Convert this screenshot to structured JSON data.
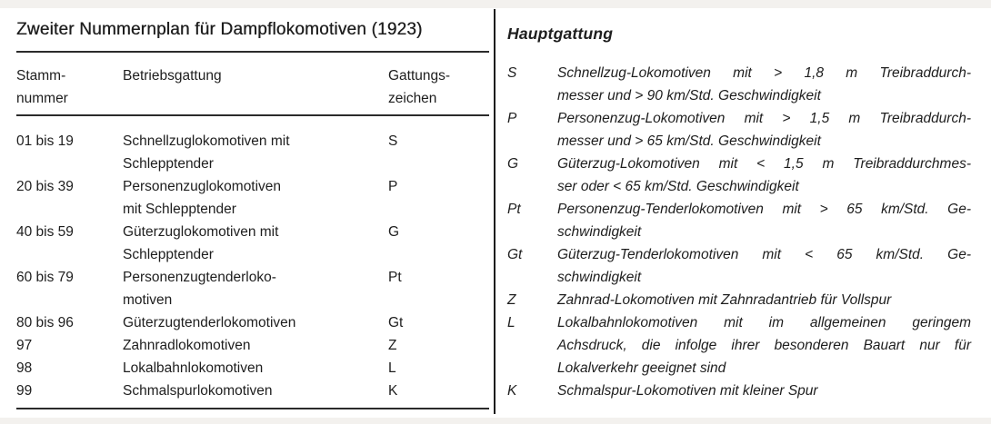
{
  "left": {
    "title": "Zweiter Nummernplan für Dampflokomotiven (1923)",
    "header": {
      "stammnummer": [
        "Stamm-",
        "nummer"
      ],
      "betriebsgattung": "Betriebsgattung",
      "gattungszeichen": [
        "Gattungs-",
        "zeichen"
      ]
    },
    "rows": [
      {
        "stammnummer": "01 bis 19",
        "betriebsgattung": [
          "Schnellzuglokomotiven mit",
          "Schlepptender"
        ],
        "gattungszeichen": "S"
      },
      {
        "stammnummer": "20 bis 39",
        "betriebsgattung": [
          "Personenzuglokomotiven",
          "mit Schlepptender"
        ],
        "gattungszeichen": "P"
      },
      {
        "stammnummer": "40 bis 59",
        "betriebsgattung": [
          "Güterzuglokomotiven mit",
          "Schlepptender"
        ],
        "gattungszeichen": "G"
      },
      {
        "stammnummer": "60 bis 79",
        "betriebsgattung": [
          "Personenzugtenderloko-",
          "motiven"
        ],
        "gattungszeichen": "Pt"
      },
      {
        "stammnummer": "80 bis 96",
        "betriebsgattung": [
          "Güterzugtenderlokomotiven"
        ],
        "gattungszeichen": "Gt"
      },
      {
        "stammnummer": "97",
        "betriebsgattung": [
          "Zahnradlokomotiven"
        ],
        "gattungszeichen": "Z"
      },
      {
        "stammnummer": "98",
        "betriebsgattung": [
          "Lokalbahnlokomotiven"
        ],
        "gattungszeichen": "L"
      },
      {
        "stammnummer": "99",
        "betriebsgattung": [
          "Schmalspurlokomotiven"
        ],
        "gattungszeichen": "K"
      }
    ]
  },
  "right": {
    "heading": "Hauptgattung",
    "entries": [
      {
        "code": "S",
        "lines": [
          "Schnellzug-Lokomotiven mit > 1,8 m Treibraddurch-",
          "messer und > 90 km/Std. Geschwindigkeit"
        ]
      },
      {
        "code": "P",
        "lines": [
          "Personenzug-Lokomotiven mit > 1,5 m Treibraddurch-",
          "messer und > 65 km/Std. Geschwindigkeit"
        ]
      },
      {
        "code": "G",
        "lines": [
          "Güterzug-Lokomotiven mit < 1,5 m Treibraddurchmes-",
          "ser oder < 65 km/Std. Geschwindigkeit"
        ]
      },
      {
        "code": "Pt",
        "lines": [
          "Personenzug-Tenderlokomotiven mit > 65 km/Std. Ge-",
          "schwindigkeit"
        ]
      },
      {
        "code": "Gt",
        "lines": [
          "Güterzug-Tenderlokomotiven mit < 65 km/Std. Ge-",
          "schwindigkeit"
        ]
      },
      {
        "code": "Z",
        "lines": [
          "Zahnrad-Lokomotiven mit Zahnradantrieb für Vollspur"
        ]
      },
      {
        "code": "L",
        "lines": [
          "Lokalbahnlokomotiven mit im allgemeinen geringem",
          "Achsdruck, die infolge ihrer besonderen Bauart nur für",
          "Lokalverkehr geeignet sind"
        ]
      },
      {
        "code": "K",
        "lines": [
          "Schmalspur-Lokomotiven mit kleiner Spur"
        ]
      }
    ]
  },
  "colors": {
    "text": "#1e1e1e",
    "rule": "#2b2b2b",
    "divider": "#1c1c1c",
    "background": "#ffffff",
    "scan_edge": "#f3f1ee"
  }
}
